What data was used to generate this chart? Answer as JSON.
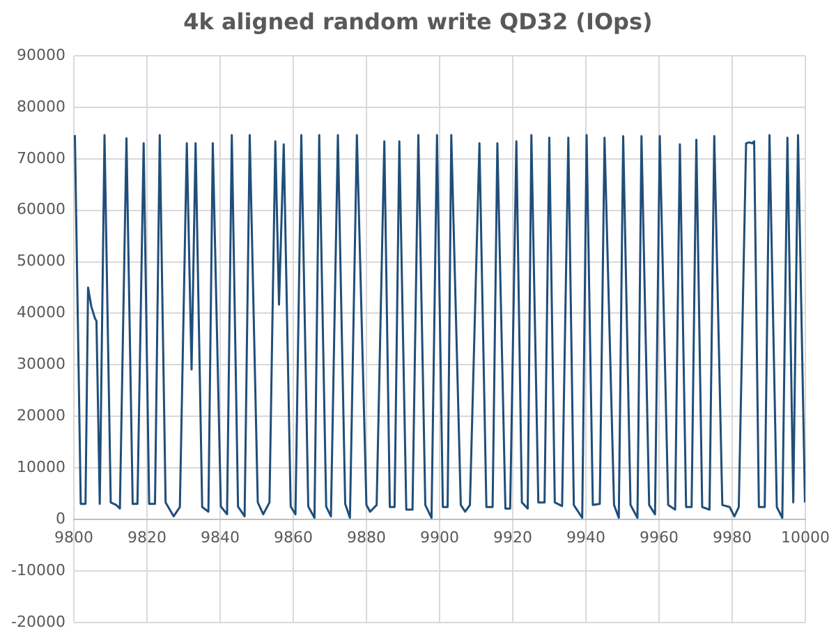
{
  "chart_data": {
    "type": "line",
    "title": "4k aligned random write QD32 (IOps)",
    "x": [
      9800.3,
      9801.9,
      9803.2,
      9803.9,
      9804.8,
      9805.8,
      9806.2,
      9807.1,
      9808.4,
      9810.1,
      9811.6,
      9812.6,
      9814.4,
      9816.1,
      9817.4,
      9819.1,
      9820.6,
      9822.2,
      9823.5,
      9825.1,
      9827.3,
      9829.0,
      9830.9,
      9832.2,
      9833.3,
      9835.1,
      9836.8,
      9838.0,
      9840.2,
      9841.9,
      9843.2,
      9844.9,
      9846.7,
      9848.1,
      9850.3,
      9851.8,
      9853.5,
      9855.1,
      9856.1,
      9857.4,
      9859.3,
      9860.6,
      9862.2,
      9864.1,
      9865.8,
      9867.1,
      9869.0,
      9870.3,
      9872.2,
      9874.2,
      9875.5,
      9877.4,
      9880.0,
      9881.0,
      9882.8,
      9884.9,
      9886.4,
      9887.7,
      9889.0,
      9890.9,
      9892.6,
      9894.2,
      9896.1,
      9897.8,
      9899.3,
      9900.9,
      9902.2,
      9903.2,
      9905.8,
      9907.0,
      9908.3,
      9910.9,
      9912.8,
      9914.5,
      9915.8,
      9918.0,
      9919.3,
      9921.0,
      9922.5,
      9924.1,
      9925.1,
      9927.0,
      9928.7,
      9930.0,
      9931.5,
      9933.5,
      9935.2,
      9936.7,
      9939.0,
      9940.2,
      9941.9,
      9943.8,
      9945.1,
      9947.7,
      9949.0,
      9950.2,
      9952.2,
      9954.1,
      9955.2,
      9957.3,
      9958.9,
      9960.2,
      9962.5,
      9964.4,
      9965.7,
      9967.4,
      9968.9,
      9970.2,
      9971.8,
      9973.8,
      9975.1,
      9977.3,
      9979.3,
      9980.6,
      9981.8,
      9983.8,
      9984.7,
      9985.5,
      9986.0,
      9987.3,
      9988.9,
      9990.2,
      9992.2,
      9993.7,
      9995.1,
      9996.7,
      9998.0,
      9999.9
    ],
    "series": [
      {
        "color": "#1f4e79",
        "values": [
          74600,
          3000,
          3000,
          45000,
          41300,
          39000,
          38500,
          3000,
          74600,
          3300,
          2800,
          2100,
          74000,
          3000,
          3000,
          73000,
          3000,
          3000,
          74600,
          3300,
          600,
          2400,
          73000,
          29100,
          73000,
          2400,
          1500,
          73000,
          2500,
          1000,
          74600,
          2500,
          600,
          74600,
          3300,
          1000,
          3300,
          73400,
          41700,
          72800,
          2500,
          1000,
          74600,
          2500,
          300,
          74600,
          2500,
          600,
          74600,
          3000,
          300,
          74600,
          2800,
          1500,
          2800,
          73400,
          2400,
          2400,
          73400,
          1900,
          1900,
          74600,
          2800,
          300,
          74600,
          2400,
          2400,
          74600,
          2800,
          1500,
          2800,
          73000,
          2400,
          2400,
          73000,
          2100,
          2100,
          73400,
          3300,
          2100,
          74600,
          3300,
          3300,
          74100,
          3300,
          2600,
          74100,
          2800,
          300,
          74600,
          2800,
          3000,
          74100,
          2800,
          300,
          74400,
          2800,
          300,
          74400,
          2800,
          1000,
          74400,
          2800,
          1900,
          72800,
          2400,
          2400,
          73700,
          2400,
          1900,
          74400,
          2800,
          2400,
          600,
          2400,
          73000,
          73200,
          73000,
          73400,
          2400,
          2400,
          74600,
          2400,
          300,
          74100,
          3300,
          74600,
          3300
        ]
      }
    ],
    "xlim": [
      9800,
      10000
    ],
    "xticks": [
      9800,
      9820,
      9840,
      9860,
      9880,
      9900,
      9920,
      9940,
      9960,
      9980,
      10000
    ],
    "ylim": [
      -20000,
      90000
    ],
    "yticks": [
      -20000,
      -10000,
      0,
      10000,
      20000,
      30000,
      40000,
      50000,
      60000,
      70000,
      80000,
      90000
    ],
    "grid": true,
    "legend": false,
    "marker": "none",
    "line_style": "solid"
  }
}
